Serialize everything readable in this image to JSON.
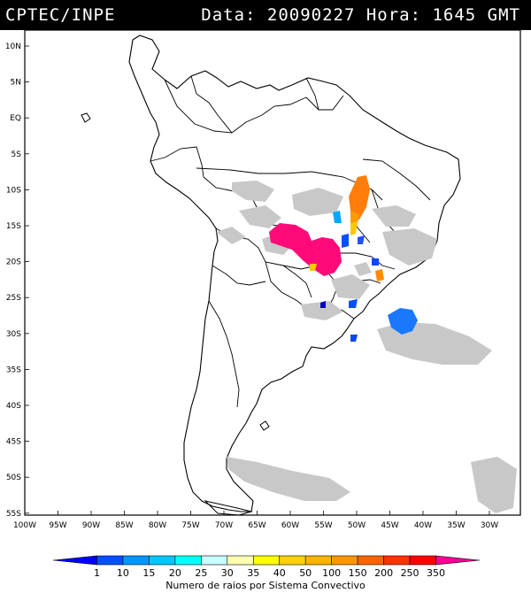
{
  "header": {
    "source": "CPTEC/INPE",
    "datetime": "Data: 20090227  Hora: 1645 GMT"
  },
  "map": {
    "lat_labels": [
      "10N",
      "5N",
      "EQ",
      "5S",
      "10S",
      "15S",
      "20S",
      "25S",
      "30S",
      "35S",
      "40S",
      "45S",
      "50S",
      "55S"
    ],
    "lon_labels": [
      "100W",
      "95W",
      "90W",
      "85W",
      "80W",
      "75W",
      "70W",
      "65W",
      "60W",
      "55W",
      "50W",
      "45W",
      "40W",
      "35W",
      "30W"
    ]
  },
  "legend": {
    "title": "Numero de raios por Sistema Convectivo",
    "values": [
      "1",
      "10",
      "15",
      "20",
      "25",
      "30",
      "35",
      "40",
      "50",
      "100",
      "150",
      "200",
      "250",
      "350"
    ],
    "colors": [
      "#0000ff",
      "#0050ff",
      "#0096ff",
      "#00c8ff",
      "#00ffff",
      "#c8ffff",
      "#ffffb0",
      "#ffff00",
      "#ffd200",
      "#ffb400",
      "#ff9600",
      "#ff6400",
      "#ff3200",
      "#ff0000",
      "#ff0096"
    ]
  }
}
